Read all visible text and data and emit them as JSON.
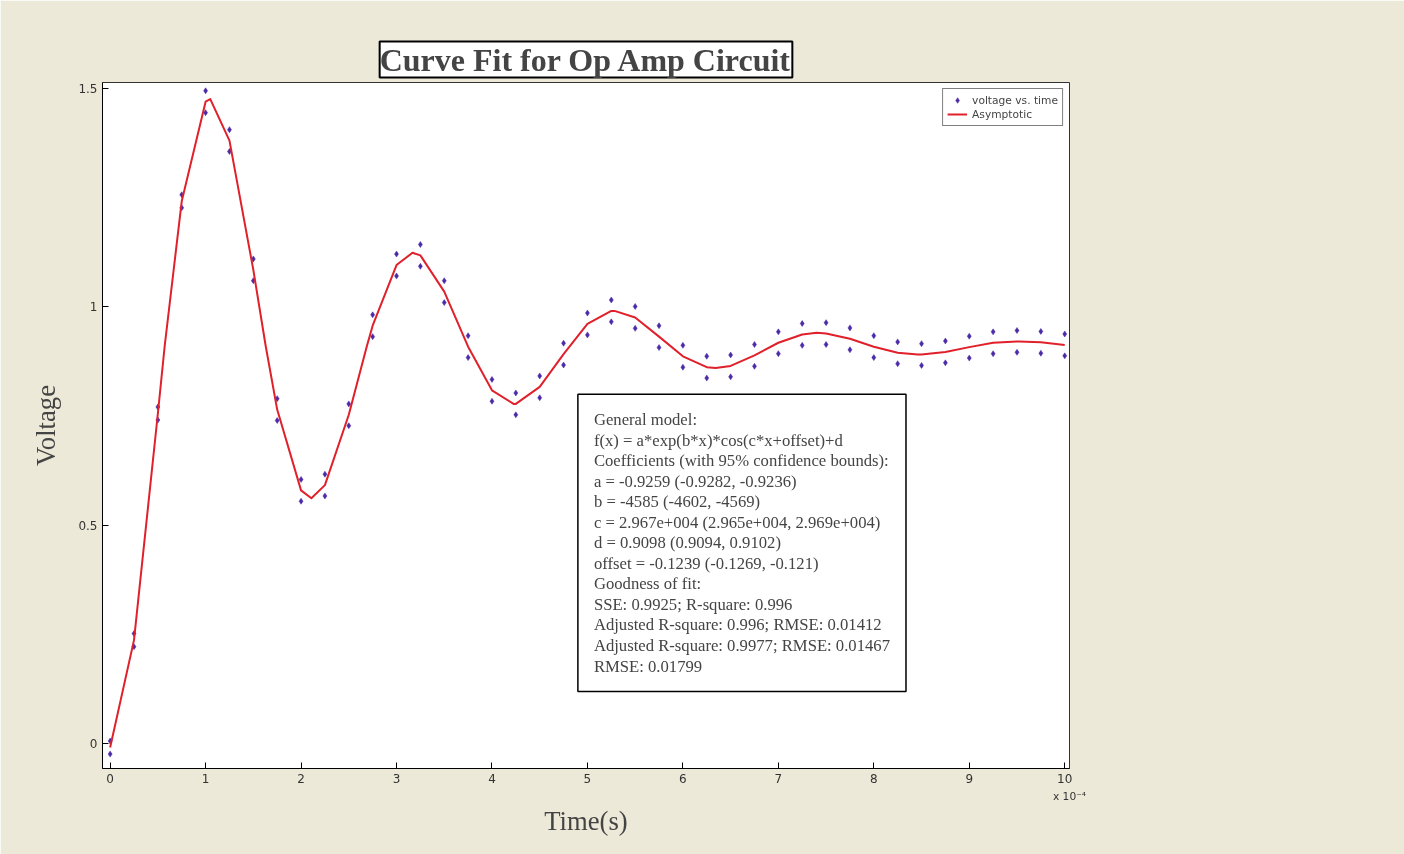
{
  "chart_data": {
    "type": "scatter",
    "title": "Curve Fit for Op Amp Circuit",
    "xlabel": "Time(s)",
    "ylabel": "Voltage",
    "xlim": [
      -0.08,
      10.05
    ],
    "ylim": [
      -0.057,
      1.514
    ],
    "xticks": [
      0,
      1,
      2,
      3,
      4,
      5,
      6,
      7,
      8,
      9,
      10
    ],
    "yticks": [
      0,
      0.5,
      1,
      1.5
    ],
    "legend": "top right",
    "grid": false,
    "annotations": [
      "x 10⁻⁴",
      "General model:",
      "f(x) = a*exp(b*x)*cos(c*x+offset)+d",
      "Coefficients (with 95% confidence bounds):",
      "a = -0.9259 (-0.9282, -0.9236)",
      "b = -4585 (-4602, -4569)",
      "c = 2.967e+004 (2.965e+004, 2.969e+004)",
      "d = 0.9098 (0.9094, 0.9102)",
      "offset = -0.1239 (-0.1269, -0.121)",
      "Goodness of fit:",
      "SSE: 0.9925; R-square: 0.996",
      "Adjusted R-square: 0.996; RMSE: 0.01412",
      "Adjusted R-square: 0.9977; RMSE: 0.01467",
      "RMSE: 0.01799"
    ],
    "series": [
      {
        "name": "voltage vs. time",
        "marker": "diamond",
        "color": "#4b2aa8",
        "x": [
          0,
          0,
          0.25,
          0.25,
          0.5,
          0.5,
          0.75,
          0.75,
          1,
          1,
          1.25,
          1.25,
          1.5,
          1.5,
          1.75,
          1.75,
          2,
          2,
          2.25,
          2.25,
          2.5,
          2.5,
          2.75,
          2.75,
          3,
          3,
          3.25,
          3.25,
          3.5,
          3.5,
          3.75,
          3.75,
          4,
          4,
          4.25,
          4.25,
          4.5,
          4.5,
          4.75,
          4.75,
          5,
          5,
          5.25,
          5.25,
          5.5,
          5.5,
          5.75,
          5.75,
          6,
          6,
          6.25,
          6.25,
          6.5,
          6.5,
          6.75,
          6.75,
          7,
          7,
          7.25,
          7.25,
          7.5,
          7.5,
          7.75,
          7.75,
          8,
          8,
          8.25,
          8.25,
          8.5,
          8.5,
          8.75,
          8.75,
          9,
          9,
          9.25,
          9.25,
          9.5,
          9.5,
          9.75,
          9.75,
          10,
          10
        ],
        "values": [
          0.006,
          -0.024,
          0.252,
          0.222,
          0.771,
          0.741,
          1.257,
          1.227,
          1.495,
          1.445,
          1.406,
          1.356,
          1.11,
          1.06,
          0.79,
          0.74,
          0.605,
          0.555,
          0.617,
          0.567,
          0.778,
          0.728,
          0.982,
          0.932,
          1.121,
          1.071,
          1.143,
          1.093,
          1.06,
          1.01,
          0.934,
          0.884,
          0.834,
          0.784,
          0.803,
          0.753,
          0.842,
          0.792,
          0.917,
          0.867,
          0.986,
          0.936,
          1.016,
          0.966,
          1.001,
          0.951,
          0.957,
          0.907,
          0.912,
          0.862,
          0.887,
          0.837,
          0.89,
          0.84,
          0.914,
          0.864,
          0.943,
          0.893,
          0.962,
          0.912,
          0.964,
          0.914,
          0.952,
          0.902,
          0.934,
          0.884,
          0.92,
          0.87,
          0.916,
          0.866,
          0.922,
          0.872,
          0.933,
          0.883,
          0.943,
          0.893,
          0.946,
          0.896,
          0.944,
          0.894,
          0.938,
          0.888
        ]
      },
      {
        "name": "Asymptotic",
        "type": "line",
        "color": "#e0202a",
        "line_style": "solid",
        "x": [
          0,
          0.25,
          0.5,
          0.5712,
          0.75,
          1,
          1.049,
          1.25,
          1.5,
          1.63,
          1.75,
          2,
          2.108,
          2.25,
          2.5,
          2.689,
          2.75,
          3,
          3.167,
          3.25,
          3.5,
          3.75,
          4,
          4.226,
          4.25,
          4.5,
          4.75,
          5,
          5.25,
          5.284,
          5.5,
          5.75,
          6,
          6.25,
          6.343,
          6.5,
          6.75,
          7,
          7.25,
          7.402,
          7.5,
          7.75,
          8,
          8.25,
          8.461,
          8.5,
          8.75,
          9,
          9.25,
          9.5,
          9.52,
          9.75,
          10
        ],
        "values": [
          -0.009,
          0.237,
          0.756,
          0.91,
          1.242,
          1.47,
          1.476,
          1.381,
          1.085,
          0.91,
          0.765,
          0.58,
          0.562,
          0.592,
          0.753,
          0.91,
          0.957,
          1.096,
          1.124,
          1.118,
          1.035,
          0.909,
          0.809,
          0.778,
          0.778,
          0.817,
          0.892,
          0.961,
          0.991,
          0.991,
          0.976,
          0.932,
          0.887,
          0.862,
          0.86,
          0.865,
          0.889,
          0.918,
          0.937,
          0.941,
          0.939,
          0.927,
          0.909,
          0.895,
          0.891,
          0.891,
          0.897,
          0.908,
          0.918,
          0.921,
          0.921,
          0.919,
          0.913
        ]
      }
    ]
  }
}
